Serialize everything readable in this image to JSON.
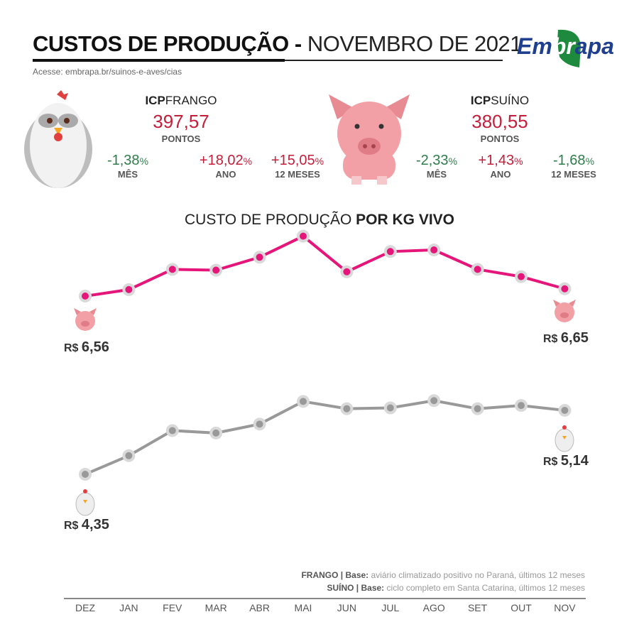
{
  "header": {
    "title_bold": "CUSTOS DE PRODUÇÃO -",
    "title_light": "NOVEMBRO DE 2021",
    "subtitle": "Acesse: embrapa.br/suinos-e-aves/cias",
    "logo_text": "Embrapa"
  },
  "frango": {
    "icp_bold": "ICP",
    "icp_name": "FRANGO",
    "points": "397,57",
    "points_label": "PONTOS",
    "stats": [
      {
        "value": "-1,38",
        "pct": "%",
        "label": "MÊS",
        "trend": "down"
      },
      {
        "value": "+18,02",
        "pct": "%",
        "label": "ANO",
        "trend": "up"
      },
      {
        "value": "+15,05",
        "pct": "%",
        "label": "12 MESES",
        "trend": "up"
      }
    ]
  },
  "suino": {
    "icp_bold": "ICP",
    "icp_name": "SUÍNO",
    "points": "380,55",
    "points_label": "PONTOS",
    "stats": [
      {
        "value": "-2,33",
        "pct": "%",
        "label": "MÊS",
        "trend": "down"
      },
      {
        "value": "+1,43",
        "pct": "%",
        "label": "ANO",
        "trend": "up"
      },
      {
        "value": "-1,68",
        "pct": "%",
        "label": "12 MESES",
        "trend": "down"
      }
    ]
  },
  "colors": {
    "up": "#c41e3a",
    "down": "#2e7d4a",
    "pig_line": "#e6157a",
    "chicken_line": "#999999",
    "marker": "#d9d9d9"
  },
  "chart_data": {
    "type": "line",
    "title_light": "CUSTO DE PRODUÇÃO",
    "title_bold": "POR KG VIVO",
    "categories": [
      "DEZ",
      "JAN",
      "FEV",
      "MAR",
      "ABR",
      "MAI",
      "JUN",
      "JUL",
      "AGO",
      "SET",
      "OUT",
      "NOV"
    ],
    "series": [
      {
        "key": "suino",
        "values": [
          6.56,
          6.64,
          6.89,
          6.88,
          7.04,
          7.3,
          6.86,
          7.11,
          7.13,
          6.89,
          6.8,
          6.65
        ],
        "start_label": "R$",
        "start_value": "6,56",
        "end_label": "R$",
        "end_value": "6,65"
      },
      {
        "key": "frango",
        "values": [
          4.35,
          4.58,
          4.89,
          4.86,
          4.97,
          5.25,
          5.16,
          5.17,
          5.26,
          5.16,
          5.2,
          5.14
        ],
        "start_label": "R$",
        "start_value": "4,35",
        "end_label": "R$",
        "end_value": "5,14"
      }
    ],
    "grid": false,
    "notes": [
      {
        "bold": "FRANGO | Base:",
        "text": "aviário climatizado positivo no Paraná, últimos 12 meses"
      },
      {
        "bold": "SUÍNO | Base:",
        "text": "ciclo completo em Santa Catarina, últimos 12 meses"
      }
    ]
  }
}
